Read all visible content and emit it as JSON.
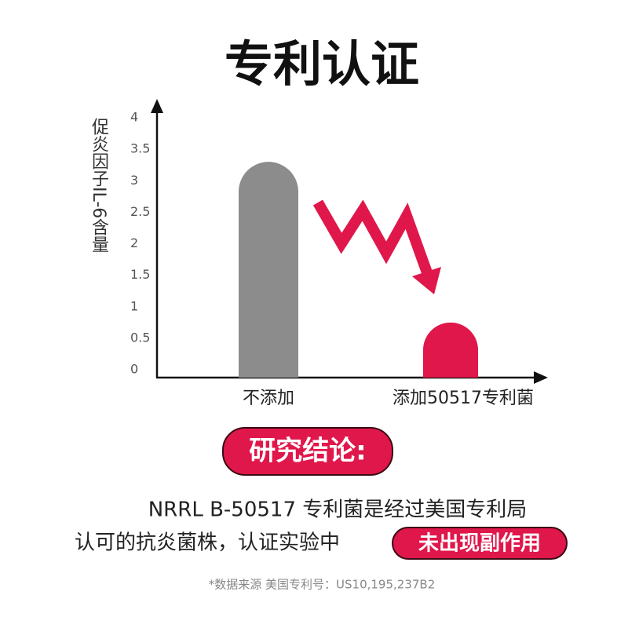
{
  "chart_data": {
    "type": "bar",
    "title": "专利认证",
    "y_label": "促炎因子IL-6含量",
    "categories": [
      "不添加",
      "添加50517专利菌"
    ],
    "values": [
      3.3,
      0.75
    ],
    "colors": [
      "#8c8c8c",
      "#e0174a"
    ],
    "ylim": [
      0,
      4
    ],
    "yticks": [
      0,
      0.5,
      1,
      1.5,
      2,
      2.5,
      3,
      3.5,
      4
    ],
    "grid": false
  },
  "conclusion": {
    "heading": "研究结论:",
    "lines": [
      "NRRL B-50517 专利菌是经过美国专利局",
      "认可的抗炎菌株，认证实验中"
    ],
    "highlight": "未出现副作用"
  },
  "footnote": "*数据来源 美国专利号：US10,195,237B2"
}
